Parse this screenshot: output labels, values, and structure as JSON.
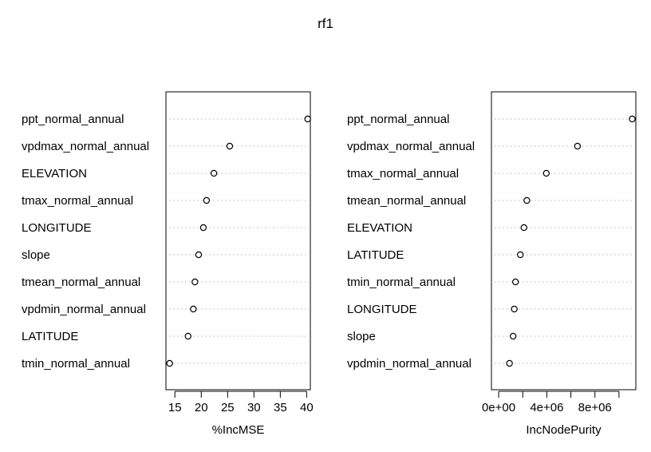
{
  "chart_title": "rf1",
  "chart_data": [
    {
      "type": "scatter",
      "subtype": "dotchart",
      "title": "rf1",
      "xlabel": "%IncMSE",
      "ylabel": "",
      "xlim": [
        13.3,
        40.7
      ],
      "xticks": [
        15,
        20,
        25,
        30,
        35,
        40
      ],
      "xtick_labels": [
        "15",
        "20",
        "25",
        "30",
        "35",
        "40"
      ],
      "grid": "dotted horizontal guide lines",
      "categories": [
        "ppt_normal_annual",
        "vpdmax_normal_annual",
        "ELEVATION",
        "tmax_normal_annual",
        "LONGITUDE",
        "slope",
        "tmean_normal_annual",
        "vpdmin_normal_annual",
        "LATITUDE",
        "tmin_normal_annual"
      ],
      "values": [
        40.2,
        25.4,
        22.4,
        21.0,
        20.4,
        19.5,
        18.8,
        18.5,
        17.5,
        14.0
      ]
    },
    {
      "type": "scatter",
      "subtype": "dotchart",
      "title": "",
      "xlabel": "IncNodePurity",
      "ylabel": "",
      "xlim": [
        -600000,
        11400000
      ],
      "xticks": [
        0,
        2000000,
        4000000,
        6000000,
        8000000,
        10000000
      ],
      "xtick_labels": [
        "0e+00",
        "",
        "4e+06",
        "",
        "8e+06",
        ""
      ],
      "grid": "dotted horizontal guide lines",
      "categories": [
        "ppt_normal_annual",
        "vpdmax_normal_annual",
        "tmax_normal_annual",
        "tmean_normal_annual",
        "ELEVATION",
        "LATITUDE",
        "tmin_normal_annual",
        "LONGITUDE",
        "slope",
        "vpdmin_normal_annual"
      ],
      "values": [
        11100000,
        6550000,
        3960000,
        2340000,
        2100000,
        1800000,
        1400000,
        1300000,
        1200000,
        900000
      ]
    }
  ]
}
